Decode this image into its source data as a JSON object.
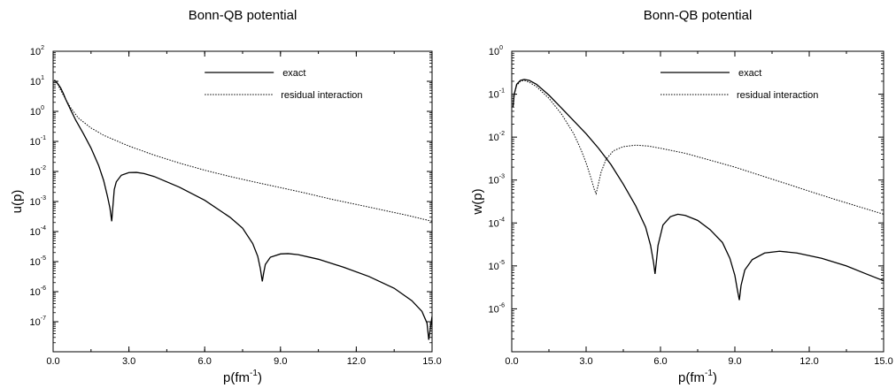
{
  "chart_data": [
    {
      "type": "line",
      "title": "Bonn-QB potential",
      "xlabel_main": "p(fm",
      "xlabel_sup": "-1",
      "xlabel_end": ")",
      "ylabel": "u(p)",
      "xlim": [
        0,
        15
      ],
      "ylog": true,
      "ylim_exp": [
        -8,
        2
      ],
      "xticks": [
        {
          "value": 0,
          "label": "0.0"
        },
        {
          "value": 3,
          "label": "3.0"
        },
        {
          "value": 6,
          "label": "6.0"
        },
        {
          "value": 9,
          "label": "9.0"
        },
        {
          "value": 12,
          "label": "12.0"
        },
        {
          "value": 15,
          "label": "15.0"
        }
      ],
      "yticks": [
        {
          "exp": 2,
          "base": "10",
          "sup": "2"
        },
        {
          "exp": 1,
          "base": "10",
          "sup": "1"
        },
        {
          "exp": 0,
          "base": "10",
          "sup": "0"
        },
        {
          "exp": -1,
          "base": "10",
          "sup": "-1"
        },
        {
          "exp": -2,
          "base": "10",
          "sup": "-2"
        },
        {
          "exp": -3,
          "base": "10",
          "sup": "-3"
        },
        {
          "exp": -4,
          "base": "10",
          "sup": "-4"
        },
        {
          "exp": -5,
          "base": "10",
          "sup": "-5"
        },
        {
          "exp": -6,
          "base": "10",
          "sup": "-6"
        },
        {
          "exp": -7,
          "base": "10",
          "sup": "-7"
        }
      ],
      "legend_position": "top-right",
      "series": [
        {
          "name": "exact",
          "style": "solid",
          "color": "#000000",
          "points": [
            [
              0.05,
              11
            ],
            [
              0.1,
              10
            ],
            [
              0.2,
              8
            ],
            [
              0.3,
              6
            ],
            [
              0.4,
              4
            ],
            [
              0.5,
              2.5
            ],
            [
              0.7,
              1.1
            ],
            [
              0.9,
              0.5
            ],
            [
              1.2,
              0.18
            ],
            [
              1.5,
              0.06
            ],
            [
              1.8,
              0.016
            ],
            [
              2.0,
              0.005
            ],
            [
              2.15,
              0.0015
            ],
            [
              2.25,
              0.0006
            ],
            [
              2.32,
              0.00022
            ],
            [
              2.36,
              0.0006
            ],
            [
              2.42,
              0.0025
            ],
            [
              2.5,
              0.0045
            ],
            [
              2.7,
              0.0075
            ],
            [
              3.0,
              0.0092
            ],
            [
              3.3,
              0.0093
            ],
            [
              3.6,
              0.0085
            ],
            [
              4.0,
              0.0068
            ],
            [
              5.0,
              0.003
            ],
            [
              6.0,
              0.0011
            ],
            [
              7.0,
              0.0003
            ],
            [
              7.5,
              0.00013
            ],
            [
              7.9,
              4e-05
            ],
            [
              8.1,
              1.5e-05
            ],
            [
              8.2,
              6e-06
            ],
            [
              8.28,
              2.2e-06
            ],
            [
              8.33,
              4e-06
            ],
            [
              8.4,
              8e-06
            ],
            [
              8.6,
              1.4e-05
            ],
            [
              9.0,
              1.8e-05
            ],
            [
              9.3,
              1.85e-05
            ],
            [
              9.7,
              1.7e-05
            ],
            [
              10.5,
              1.2e-05
            ],
            [
              11.5,
              6.5e-06
            ],
            [
              12.5,
              3.2e-06
            ],
            [
              13.5,
              1.3e-06
            ],
            [
              14.2,
              5e-07
            ],
            [
              14.6,
              2.2e-07
            ],
            [
              14.8,
              9e-08
            ],
            [
              14.87,
              2.5e-08
            ],
            [
              14.93,
              6e-08
            ],
            [
              15.0,
              1.5e-07
            ]
          ]
        },
        {
          "name": "residual interaction",
          "style": "dotted",
          "color": "#000000",
          "points": [
            [
              0.05,
              11
            ],
            [
              0.1,
              10
            ],
            [
              0.2,
              7.5
            ],
            [
              0.3,
              5
            ],
            [
              0.5,
              2.5
            ],
            [
              0.7,
              1.3
            ],
            [
              1.0,
              0.6
            ],
            [
              1.5,
              0.28
            ],
            [
              2.0,
              0.16
            ],
            [
              3.0,
              0.07
            ],
            [
              4.0,
              0.035
            ],
            [
              5.0,
              0.019
            ],
            [
              6.0,
              0.011
            ],
            [
              7.0,
              0.0068
            ],
            [
              8.0,
              0.0044
            ],
            [
              9.0,
              0.0029
            ],
            [
              10.0,
              0.0019
            ],
            [
              11.0,
              0.0012
            ],
            [
              12.0,
              0.0008
            ],
            [
              13.0,
              0.00053
            ],
            [
              14.0,
              0.00035
            ],
            [
              15.0,
              0.00022
            ]
          ]
        }
      ]
    },
    {
      "type": "line",
      "title": "Bonn-QB potential",
      "xlabel_main": "p(fm",
      "xlabel_sup": "-1",
      "xlabel_end": ")",
      "ylabel": "w(p)",
      "xlim": [
        0,
        15
      ],
      "ylog": true,
      "ylim_exp": [
        -7,
        0
      ],
      "xticks": [
        {
          "value": 0,
          "label": "0.0"
        },
        {
          "value": 3,
          "label": "3.0"
        },
        {
          "value": 6,
          "label": "6.0"
        },
        {
          "value": 9,
          "label": "9.0"
        },
        {
          "value": 12,
          "label": "12.0"
        },
        {
          "value": 15,
          "label": "15.0"
        }
      ],
      "yticks": [
        {
          "exp": 0,
          "base": "10",
          "sup": "0"
        },
        {
          "exp": -1,
          "base": "10",
          "sup": "-1"
        },
        {
          "exp": -2,
          "base": "10",
          "sup": "-2"
        },
        {
          "exp": -3,
          "base": "10",
          "sup": "-3"
        },
        {
          "exp": -4,
          "base": "10",
          "sup": "-4"
        },
        {
          "exp": -5,
          "base": "10",
          "sup": "-5"
        },
        {
          "exp": -6,
          "base": "10",
          "sup": "-6"
        }
      ],
      "legend_position": "top-right",
      "series": [
        {
          "name": "exact",
          "style": "solid",
          "color": "#000000",
          "points": [
            [
              0.05,
              0.05
            ],
            [
              0.1,
              0.1
            ],
            [
              0.2,
              0.17
            ],
            [
              0.35,
              0.21
            ],
            [
              0.5,
              0.22
            ],
            [
              0.7,
              0.21
            ],
            [
              1.0,
              0.17
            ],
            [
              1.5,
              0.095
            ],
            [
              2.0,
              0.048
            ],
            [
              2.5,
              0.024
            ],
            [
              3.0,
              0.012
            ],
            [
              3.5,
              0.0055
            ],
            [
              4.0,
              0.0023
            ],
            [
              4.5,
              0.0008
            ],
            [
              5.0,
              0.00025
            ],
            [
              5.4,
              8e-05
            ],
            [
              5.6,
              3e-05
            ],
            [
              5.72,
              1.2e-05
            ],
            [
              5.78,
              6.5e-06
            ],
            [
              5.83,
              1.2e-05
            ],
            [
              5.9,
              3e-05
            ],
            [
              6.1,
              9e-05
            ],
            [
              6.4,
              0.00014
            ],
            [
              6.7,
              0.00016
            ],
            [
              7.0,
              0.00015
            ],
            [
              7.5,
              0.000115
            ],
            [
              8.0,
              7e-05
            ],
            [
              8.5,
              3.5e-05
            ],
            [
              8.8,
              1.5e-05
            ],
            [
              9.0,
              6e-06
            ],
            [
              9.1,
              2.8e-06
            ],
            [
              9.18,
              1.6e-06
            ],
            [
              9.25,
              3.5e-06
            ],
            [
              9.4,
              8e-06
            ],
            [
              9.7,
              1.4e-05
            ],
            [
              10.2,
              2e-05
            ],
            [
              10.8,
              2.2e-05
            ],
            [
              11.5,
              2e-05
            ],
            [
              12.5,
              1.5e-05
            ],
            [
              13.5,
              1e-05
            ],
            [
              14.3,
              6.5e-06
            ],
            [
              15.0,
              4.5e-06
            ]
          ]
        },
        {
          "name": "residual interaction",
          "style": "dotted",
          "color": "#000000",
          "points": [
            [
              0.05,
              0.05
            ],
            [
              0.1,
              0.1
            ],
            [
              0.2,
              0.16
            ],
            [
              0.35,
              0.2
            ],
            [
              0.5,
              0.21
            ],
            [
              0.7,
              0.19
            ],
            [
              1.0,
              0.15
            ],
            [
              1.5,
              0.08
            ],
            [
              2.0,
              0.035
            ],
            [
              2.5,
              0.012
            ],
            [
              2.8,
              0.005
            ],
            [
              3.0,
              0.0025
            ],
            [
              3.2,
              0.0011
            ],
            [
              3.33,
              0.0006
            ],
            [
              3.4,
              0.00048
            ],
            [
              3.47,
              0.0007
            ],
            [
              3.6,
              0.0015
            ],
            [
              3.8,
              0.003
            ],
            [
              4.1,
              0.0048
            ],
            [
              4.5,
              0.006
            ],
            [
              5.0,
              0.0065
            ],
            [
              5.5,
              0.0062
            ],
            [
              6.0,
              0.0055
            ],
            [
              7.0,
              0.0042
            ],
            [
              8.0,
              0.0029
            ],
            [
              9.0,
              0.002
            ],
            [
              10.0,
              0.0013
            ],
            [
              11.0,
              0.00085
            ],
            [
              12.0,
              0.00055
            ],
            [
              13.0,
              0.00036
            ],
            [
              14.0,
              0.00024
            ],
            [
              15.0,
              0.00016
            ]
          ]
        }
      ]
    }
  ]
}
